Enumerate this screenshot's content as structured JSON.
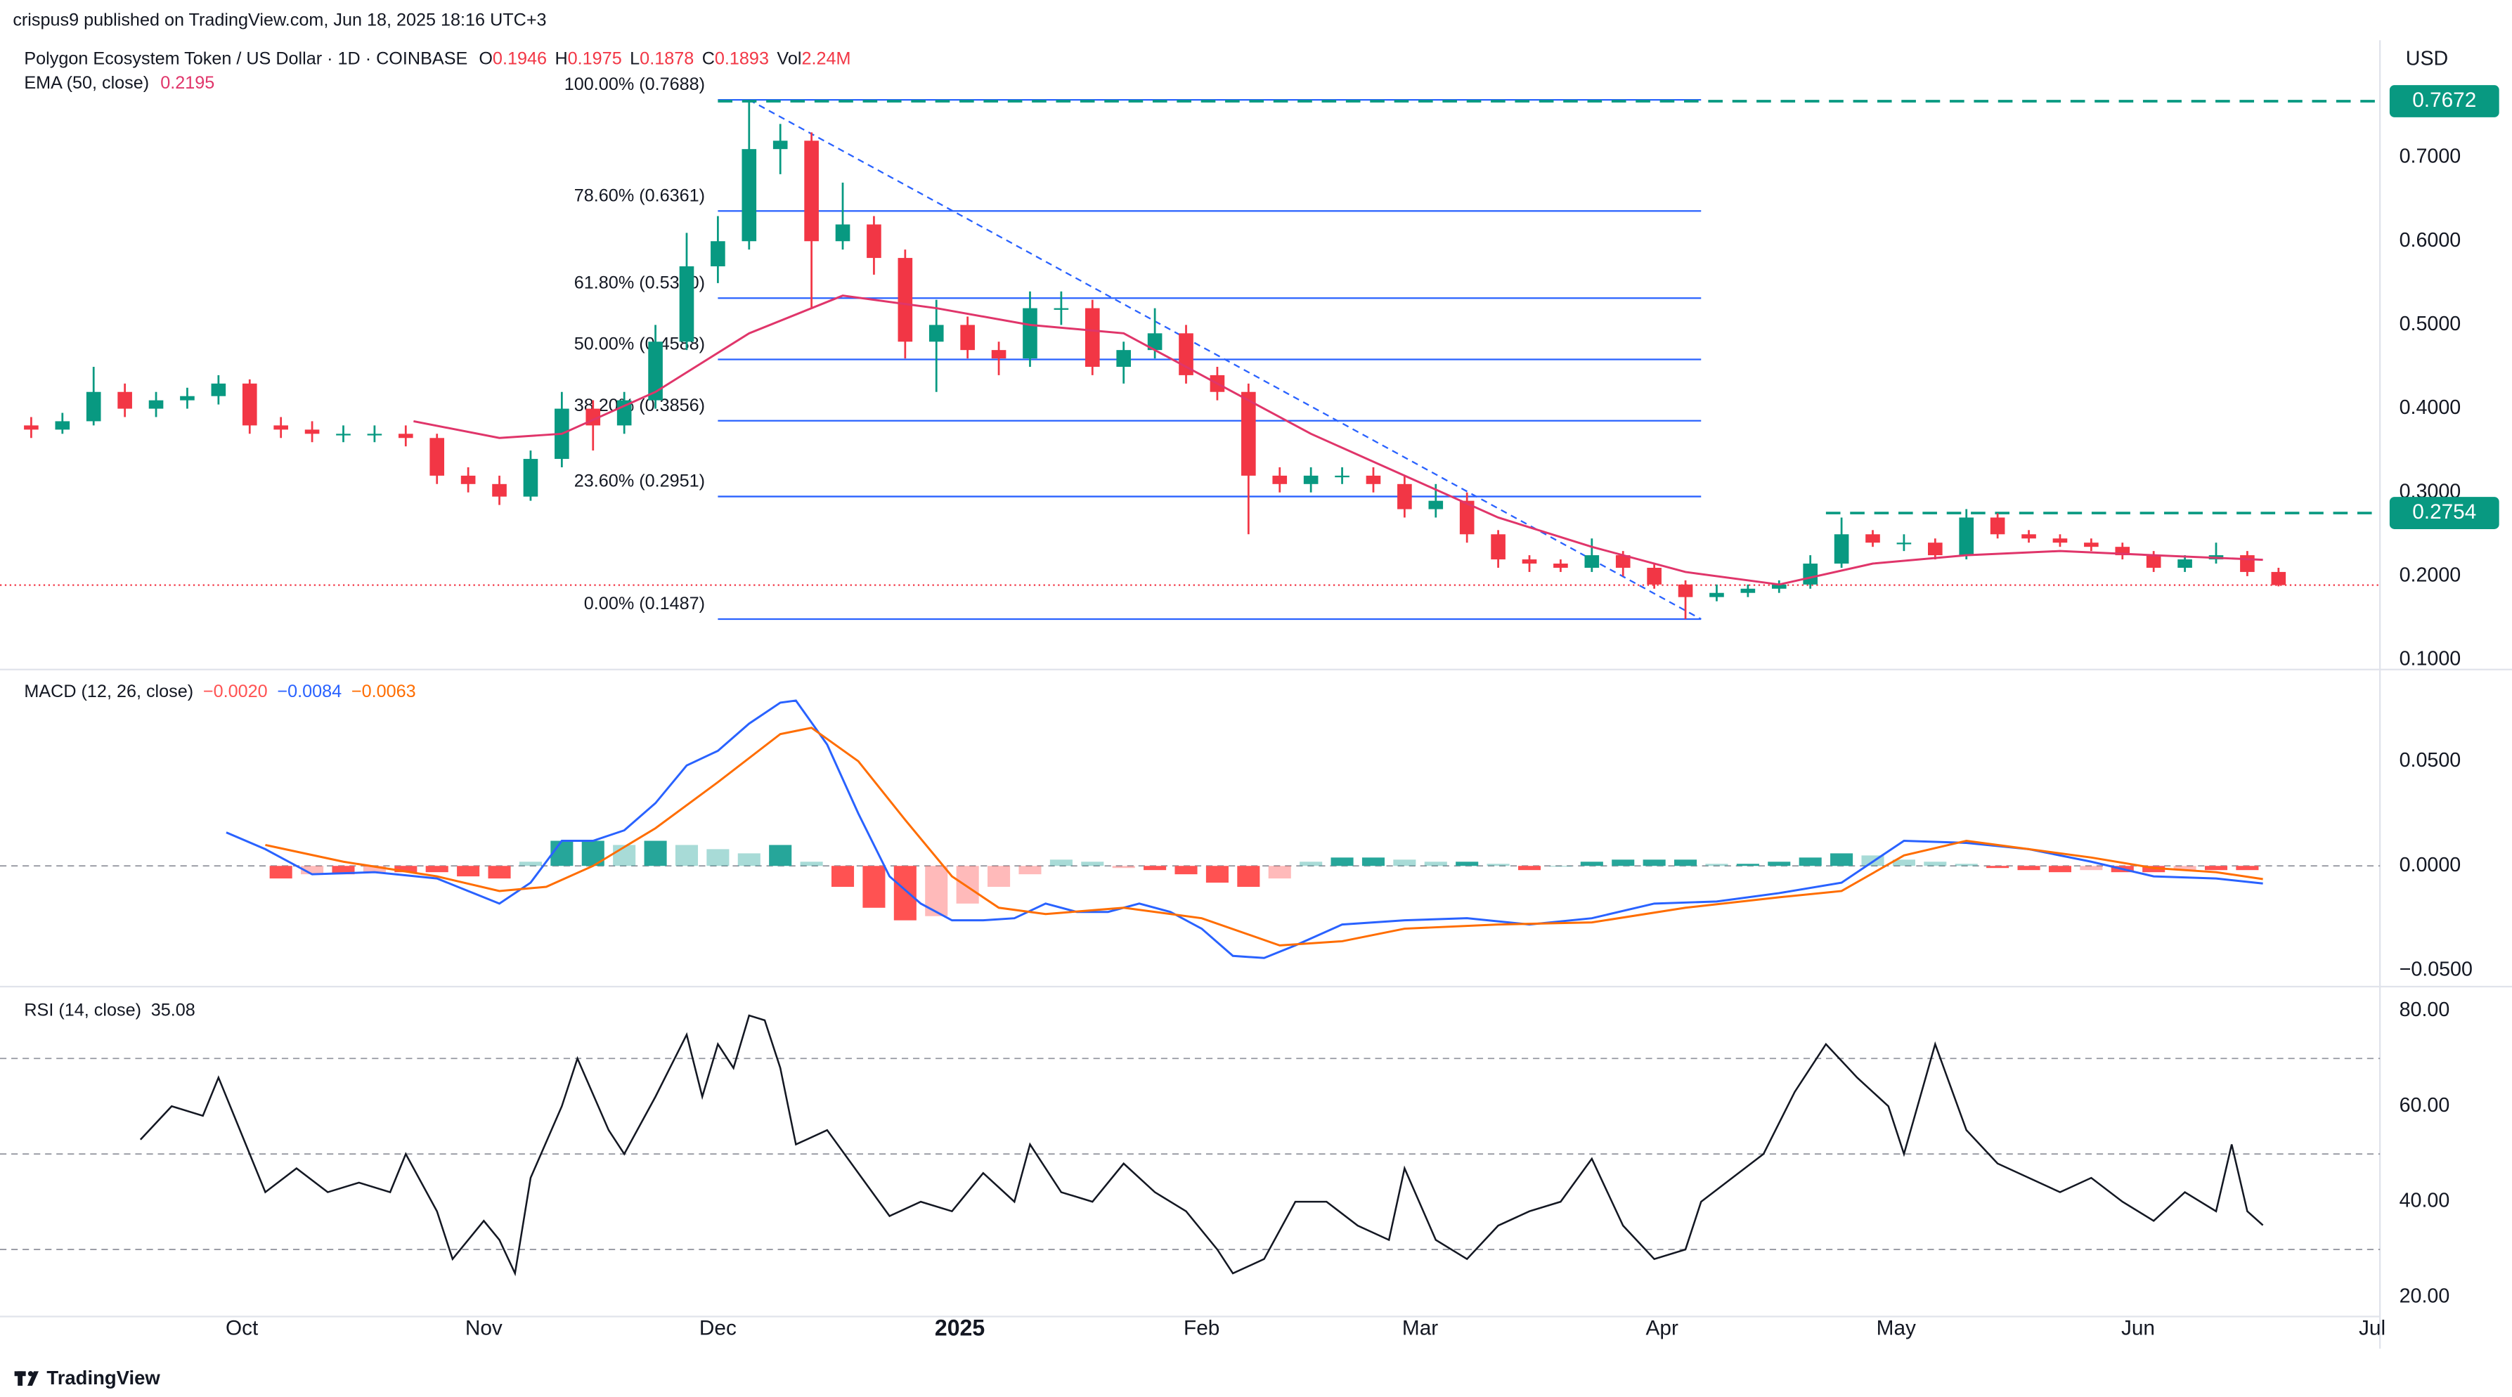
{
  "header": {
    "publisher": "crispus9 published on TradingView.com, Jun 18, 2025 18:16 UTC+3",
    "symbol": "Polygon Ecosystem Token / US Dollar · 1D · COINBASE",
    "quote": [
      {
        "label": "O",
        "value": "0.1946"
      },
      {
        "label": "H",
        "value": "0.1975"
      },
      {
        "label": "L",
        "value": "0.1878"
      },
      {
        "label": "C",
        "value": "0.1893"
      },
      {
        "label": "Vol",
        "value": "2.24M"
      }
    ],
    "currency": "USD"
  },
  "footer": "TradingView",
  "chart_data": [
    {
      "type": "candlestick",
      "xlim": [
        -4,
        301
      ],
      "ylim": [
        0.0904,
        0.84
      ],
      "yticks": [
        {
          "value": 0.1,
          "label": "0.1000"
        },
        {
          "value": 0.2,
          "label": "0.2000"
        },
        {
          "value": 0.3,
          "label": "0.3000"
        },
        {
          "value": 0.4,
          "label": "0.4000"
        },
        {
          "value": 0.5,
          "label": "0.5000"
        },
        {
          "value": 0.6,
          "label": "0.6000"
        },
        {
          "value": 0.7,
          "label": "0.7000"
        }
      ],
      "up_color": "#089981",
      "down_color": "#f23645",
      "x": [
        0,
        4,
        8,
        12,
        16,
        20,
        24,
        28,
        32,
        36,
        40,
        44,
        48,
        52,
        56,
        60,
        64,
        68,
        72,
        76,
        80,
        84,
        88,
        92,
        96,
        100,
        104,
        108,
        112,
        116,
        120,
        124,
        128,
        132,
        136,
        140,
        144,
        148,
        152,
        156,
        160,
        164,
        168,
        172,
        176,
        180,
        184,
        188,
        192,
        196,
        200,
        204,
        208,
        212,
        216,
        220,
        224,
        228,
        232,
        236,
        240,
        244,
        248,
        252,
        256,
        260,
        264,
        268,
        272,
        276,
        280,
        284,
        288
      ],
      "open": [
        0.38,
        0.375,
        0.385,
        0.42,
        0.4,
        0.41,
        0.415,
        0.43,
        0.38,
        0.375,
        0.37,
        0.37,
        0.37,
        0.365,
        0.32,
        0.31,
        0.295,
        0.34,
        0.4,
        0.38,
        0.41,
        0.48,
        0.57,
        0.6,
        0.71,
        0.72,
        0.6,
        0.62,
        0.58,
        0.48,
        0.5,
        0.47,
        0.46,
        0.52,
        0.52,
        0.45,
        0.47,
        0.49,
        0.44,
        0.42,
        0.32,
        0.31,
        0.32,
        0.32,
        0.31,
        0.28,
        0.29,
        0.25,
        0.22,
        0.215,
        0.21,
        0.225,
        0.21,
        0.19,
        0.175,
        0.18,
        0.185,
        0.19,
        0.215,
        0.25,
        0.24,
        0.24,
        0.225,
        0.27,
        0.25,
        0.245,
        0.24,
        0.235,
        0.225,
        0.21,
        0.22,
        0.225,
        0.205
      ],
      "high": [
        0.39,
        0.395,
        0.45,
        0.43,
        0.42,
        0.425,
        0.44,
        0.435,
        0.39,
        0.385,
        0.38,
        0.38,
        0.38,
        0.37,
        0.33,
        0.32,
        0.35,
        0.42,
        0.41,
        0.42,
        0.5,
        0.61,
        0.63,
        0.7688,
        0.74,
        0.73,
        0.67,
        0.63,
        0.59,
        0.53,
        0.51,
        0.48,
        0.54,
        0.54,
        0.53,
        0.48,
        0.52,
        0.5,
        0.45,
        0.43,
        0.33,
        0.33,
        0.33,
        0.33,
        0.32,
        0.31,
        0.3,
        0.255,
        0.225,
        0.22,
        0.245,
        0.23,
        0.215,
        0.195,
        0.19,
        0.19,
        0.195,
        0.225,
        0.27,
        0.255,
        0.25,
        0.245,
        0.28,
        0.275,
        0.255,
        0.25,
        0.245,
        0.24,
        0.23,
        0.225,
        0.24,
        0.23,
        0.21
      ],
      "low": [
        0.365,
        0.37,
        0.38,
        0.39,
        0.39,
        0.4,
        0.405,
        0.37,
        0.365,
        0.36,
        0.36,
        0.36,
        0.355,
        0.31,
        0.3,
        0.285,
        0.29,
        0.33,
        0.35,
        0.37,
        0.4,
        0.47,
        0.55,
        0.59,
        0.68,
        0.52,
        0.59,
        0.56,
        0.46,
        0.42,
        0.46,
        0.44,
        0.45,
        0.5,
        0.44,
        0.43,
        0.46,
        0.43,
        0.41,
        0.25,
        0.3,
        0.3,
        0.31,
        0.3,
        0.27,
        0.27,
        0.24,
        0.21,
        0.205,
        0.205,
        0.205,
        0.2,
        0.185,
        0.1487,
        0.17,
        0.175,
        0.18,
        0.185,
        0.21,
        0.235,
        0.23,
        0.22,
        0.22,
        0.245,
        0.24,
        0.235,
        0.23,
        0.22,
        0.205,
        0.205,
        0.215,
        0.2,
        0.1878
      ],
      "close": [
        0.375,
        0.385,
        0.42,
        0.4,
        0.41,
        0.415,
        0.43,
        0.38,
        0.375,
        0.37,
        0.37,
        0.37,
        0.365,
        0.32,
        0.31,
        0.295,
        0.34,
        0.4,
        0.38,
        0.41,
        0.48,
        0.57,
        0.6,
        0.71,
        0.72,
        0.6,
        0.62,
        0.58,
        0.48,
        0.5,
        0.47,
        0.46,
        0.52,
        0.52,
        0.45,
        0.47,
        0.49,
        0.44,
        0.42,
        0.32,
        0.31,
        0.32,
        0.32,
        0.31,
        0.28,
        0.29,
        0.25,
        0.22,
        0.215,
        0.21,
        0.225,
        0.21,
        0.19,
        0.175,
        0.18,
        0.185,
        0.19,
        0.215,
        0.25,
        0.24,
        0.24,
        0.225,
        0.27,
        0.25,
        0.245,
        0.24,
        0.235,
        0.225,
        0.21,
        0.22,
        0.225,
        0.205,
        0.1893
      ],
      "series": [
        {
          "name": "EMA (50, close)",
          "color": "#e0356a",
          "value_label": "0.2195",
          "x": [
            49,
            60,
            68,
            80,
            92,
            104,
            116,
            128,
            140,
            152,
            164,
            176,
            188,
            200,
            212,
            224,
            236,
            248,
            260,
            272,
            286
          ],
          "values": [
            0.385,
            0.365,
            0.37,
            0.42,
            0.49,
            0.535,
            0.52,
            0.5,
            0.49,
            0.43,
            0.37,
            0.32,
            0.27,
            0.235,
            0.205,
            0.19,
            0.215,
            0.225,
            0.23,
            0.225,
            0.2195
          ]
        }
      ],
      "fib": {
        "color": "#2962ff",
        "x": [
          88,
          214
        ],
        "levels": [
          {
            "label": "100.00% (0.7688)",
            "value": 0.7688
          },
          {
            "label": "78.60% (0.6361)",
            "value": 0.6361
          },
          {
            "label": "61.80% (0.5320)",
            "value": 0.532
          },
          {
            "label": "50.00% (0.4588)",
            "value": 0.4588
          },
          {
            "label": "38.20% (0.3856)",
            "value": 0.3856
          },
          {
            "label": "23.60% (0.2951)",
            "value": 0.2951
          },
          {
            "label": "0.00% (0.1487)",
            "value": 0.1487
          }
        ]
      },
      "trend_line": {
        "color": "#2962ff",
        "x": [
          92,
          214
        ],
        "values": [
          0.7688,
          0.1487
        ]
      },
      "horizontal_lines": [
        {
          "value": 0.7672,
          "label": "0.7672",
          "x_start": 88,
          "color": "#089981"
        },
        {
          "value": 0.2754,
          "label": "0.2754",
          "x_start": 230,
          "color": "#089981"
        }
      ]
    },
    {
      "type": "macd",
      "title": "MACD (12, 26, close)",
      "xlim": [
        -4,
        301
      ],
      "ylim": [
        -0.0569,
        0.0923
      ],
      "yticks": [
        {
          "value": -0.05,
          "label": "−0.0500"
        },
        {
          "value": 0,
          "label": "0.0000"
        },
        {
          "value": 0.05,
          "label": "0.0500"
        }
      ],
      "histogram": {
        "value_label": "−0.0020",
        "up_color": "#26a69a",
        "down_color": "#ff5252",
        "x": [
          32,
          36,
          40,
          44,
          48,
          52,
          56,
          60,
          64,
          68,
          72,
          76,
          80,
          84,
          88,
          92,
          96,
          100,
          104,
          108,
          112,
          116,
          120,
          124,
          128,
          132,
          136,
          140,
          144,
          148,
          152,
          156,
          160,
          164,
          168,
          172,
          176,
          180,
          184,
          188,
          192,
          196,
          200,
          204,
          208,
          212,
          216,
          220,
          224,
          228,
          232,
          236,
          240,
          244,
          248,
          252,
          256,
          260,
          264,
          268,
          272,
          276,
          280,
          284
        ],
        "values": [
          -0.006,
          -0.004,
          -0.004,
          -0.003,
          -0.003,
          -0.003,
          -0.005,
          -0.006,
          0.002,
          0.012,
          0.012,
          0.01,
          0.012,
          0.01,
          0.008,
          0.006,
          0.01,
          0.002,
          -0.01,
          -0.02,
          -0.026,
          -0.024,
          -0.018,
          -0.01,
          -0.004,
          0.003,
          0.002,
          -0.001,
          -0.002,
          -0.004,
          -0.008,
          -0.01,
          -0.006,
          0.002,
          0.004,
          0.004,
          0.003,
          0.002,
          0.002,
          0.001,
          -0.002,
          0,
          0.002,
          0.003,
          0.003,
          0.003,
          0.001,
          0.001,
          0.002,
          0.004,
          0.006,
          0.005,
          0.003,
          0.002,
          0.001,
          -0.001,
          -0.002,
          -0.003,
          -0.002,
          -0.003,
          -0.003,
          -0.002,
          -0.002,
          -0.002
        ]
      },
      "series": [
        {
          "color": "#2962ff",
          "value_label": "−0.0084",
          "x": [
            25,
            30,
            36,
            44,
            52,
            56,
            60,
            64,
            68,
            72,
            76,
            80,
            84,
            88,
            92,
            96,
            98,
            102,
            106,
            110,
            114,
            118,
            122,
            126,
            130,
            134,
            138,
            142,
            146,
            150,
            154,
            158,
            162,
            168,
            176,
            184,
            192,
            200,
            208,
            216,
            224,
            232,
            240,
            248,
            256,
            264,
            272,
            280,
            286
          ],
          "values": [
            0.016,
            0.008,
            -0.004,
            -0.003,
            -0.006,
            -0.012,
            -0.018,
            -0.008,
            0.012,
            0.012,
            0.017,
            0.03,
            0.048,
            0.055,
            0.068,
            0.078,
            0.079,
            0.058,
            0.025,
            -0.005,
            -0.018,
            -0.026,
            -0.026,
            -0.025,
            -0.018,
            -0.022,
            -0.022,
            -0.018,
            -0.022,
            -0.03,
            -0.043,
            -0.044,
            -0.038,
            -0.028,
            -0.026,
            -0.025,
            -0.028,
            -0.025,
            -0.018,
            -0.017,
            -0.013,
            -0.008,
            0.012,
            0.011,
            0.008,
            0.002,
            -0.005,
            -0.006,
            -0.0084
          ]
        },
        {
          "color": "#ff6d00",
          "value_label": "−0.0063",
          "x": [
            30,
            40,
            52,
            60,
            66,
            72,
            80,
            88,
            96,
            100,
            106,
            112,
            118,
            124,
            130,
            140,
            150,
            160,
            168,
            176,
            188,
            200,
            212,
            224,
            232,
            240,
            248,
            256,
            264,
            272,
            280,
            286
          ],
          "values": [
            0.01,
            0.002,
            -0.005,
            -0.012,
            -0.01,
            0,
            0.018,
            0.04,
            0.063,
            0.066,
            0.05,
            0.022,
            -0.005,
            -0.02,
            -0.023,
            -0.02,
            -0.025,
            -0.038,
            -0.036,
            -0.03,
            -0.028,
            -0.027,
            -0.02,
            -0.015,
            -0.012,
            0.005,
            0.012,
            0.008,
            0.004,
            -0.001,
            -0.003,
            -0.0063
          ]
        }
      ]
    },
    {
      "type": "rsi",
      "title": "RSI (14, close)",
      "xlim": [
        -4,
        301
      ],
      "ylim": [
        15.96,
        84.38
      ],
      "yticks": [
        {
          "value": 20,
          "label": "20.00"
        },
        {
          "value": 40,
          "label": "40.00"
        },
        {
          "value": 60,
          "label": "60.00"
        },
        {
          "value": 80,
          "label": "80.00"
        }
      ],
      "levels": [
        30,
        50,
        70
      ],
      "xticks": [
        {
          "value": 27,
          "label": "Oct"
        },
        {
          "value": 58,
          "label": "Nov"
        },
        {
          "value": 88,
          "label": "Dec"
        },
        {
          "value": 119,
          "label": "2025"
        },
        {
          "value": 150,
          "label": "Feb"
        },
        {
          "value": 178,
          "label": "Mar"
        },
        {
          "value": 209,
          "label": "Apr"
        },
        {
          "value": 239,
          "label": "May"
        },
        {
          "value": 270,
          "label": "Jun"
        },
        {
          "value": 300,
          "label": "Jul"
        }
      ],
      "series": [
        {
          "color": "#131722",
          "value_label": "35.08",
          "x": [
            14,
            18,
            22,
            24,
            28,
            30,
            34,
            38,
            42,
            46,
            48,
            52,
            54,
            58,
            60,
            62,
            64,
            68,
            70,
            74,
            76,
            80,
            84,
            86,
            88,
            90,
            92,
            94,
            96,
            98,
            102,
            106,
            110,
            114,
            118,
            122,
            126,
            128,
            132,
            136,
            140,
            144,
            148,
            152,
            154,
            158,
            162,
            166,
            170,
            174,
            176,
            180,
            184,
            188,
            192,
            196,
            200,
            204,
            208,
            212,
            214,
            218,
            222,
            226,
            230,
            234,
            238,
            240,
            244,
            248,
            252,
            256,
            260,
            264,
            268,
            272,
            276,
            280,
            282,
            284,
            286
          ],
          "values": [
            53,
            60,
            58,
            66,
            50,
            42,
            47,
            42,
            44,
            42,
            50,
            38,
            28,
            36,
            32,
            25,
            45,
            60,
            70,
            55,
            50,
            62,
            75,
            62,
            73,
            68,
            79,
            78,
            68,
            52,
            55,
            46,
            37,
            40,
            38,
            46,
            40,
            52,
            42,
            40,
            48,
            42,
            38,
            30,
            25,
            28,
            40,
            40,
            35,
            32,
            47,
            32,
            28,
            35,
            38,
            40,
            49,
            35,
            28,
            30,
            40,
            45,
            50,
            63,
            73,
            66,
            60,
            50,
            73,
            55,
            48,
            45,
            42,
            45,
            40,
            36,
            42,
            38,
            52,
            38,
            35.08
          ]
        }
      ]
    }
  ]
}
